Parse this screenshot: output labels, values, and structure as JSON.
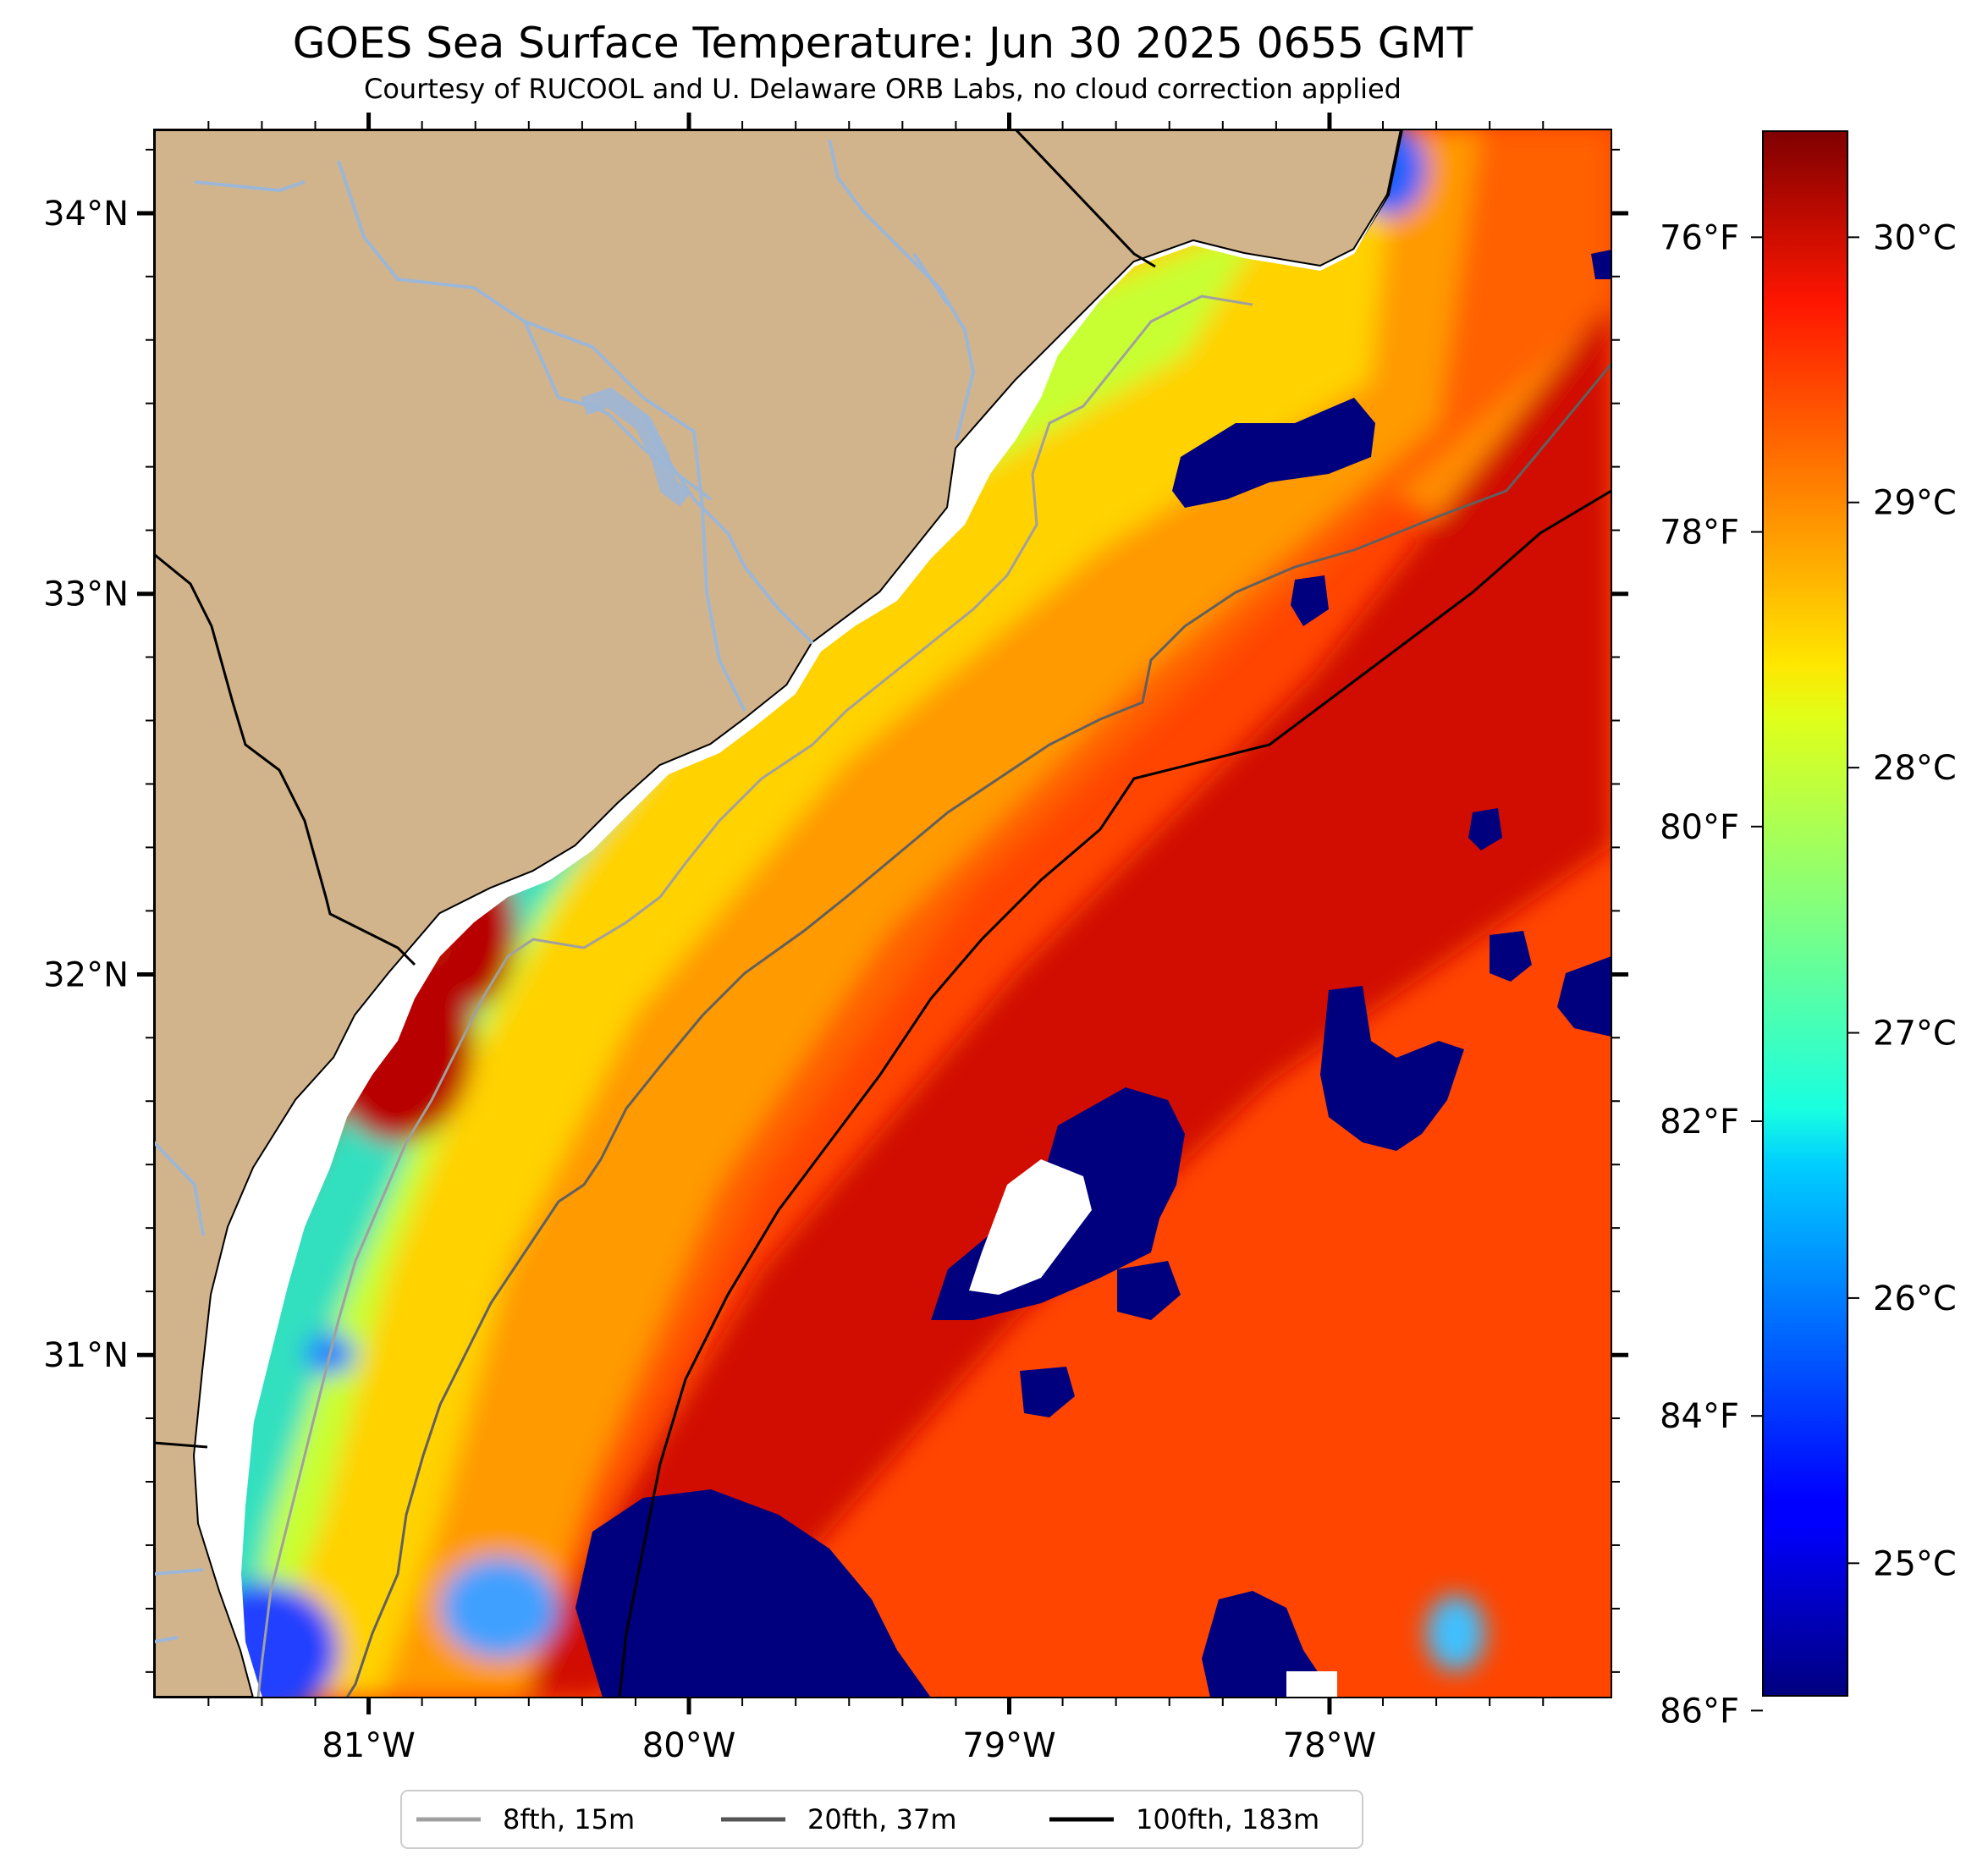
{
  "title": "GOES Sea Surface Temperature: Jun 30 2025 0655 GMT",
  "subtitle": "Courtesy of RUCOOL and U. Delaware ORB Labs, no cloud correction applied",
  "map": {
    "lon_range": [
      -81.67,
      -77.12
    ],
    "lat_range": [
      30.1,
      34.22
    ],
    "lon_ticks": [
      -81,
      -80,
      -79,
      -78
    ],
    "lat_ticks": [
      31,
      32,
      33,
      34
    ],
    "lon_labels": [
      "81°W",
      "80°W",
      "79°W",
      "78°W"
    ],
    "lat_labels": [
      "31°N",
      "32°N",
      "33°N",
      "34°N"
    ],
    "colors": {
      "land": "#d2b48c",
      "river": "#9cb6d6",
      "coast": "#000000",
      "cloud_mask": "#ffffff"
    },
    "right_axis_label_texts": [
      "86°F",
      "84°F",
      "82°F",
      "80°F",
      "78°F",
      "76°F"
    ]
  },
  "colorbar": {
    "colormap": "jet",
    "range_c": [
      24.5,
      30.4
    ],
    "tick_values_c": [
      25,
      26,
      27,
      28,
      29,
      30
    ],
    "tick_labels": [
      "25°C",
      "26°C",
      "27°C",
      "28°C",
      "29°C",
      "30°C"
    ]
  },
  "fahrenheit_axis": {
    "tick_values_f": [
      76,
      78,
      80,
      82,
      84,
      86
    ]
  },
  "legend": {
    "placement": "bottom-center",
    "items": [
      {
        "label": "8fth, 15m",
        "color": "#a0a0a0"
      },
      {
        "label": "20fth, 37m",
        "color": "#555555"
      },
      {
        "label": "100fth, 183m",
        "color": "#000000"
      }
    ]
  }
}
